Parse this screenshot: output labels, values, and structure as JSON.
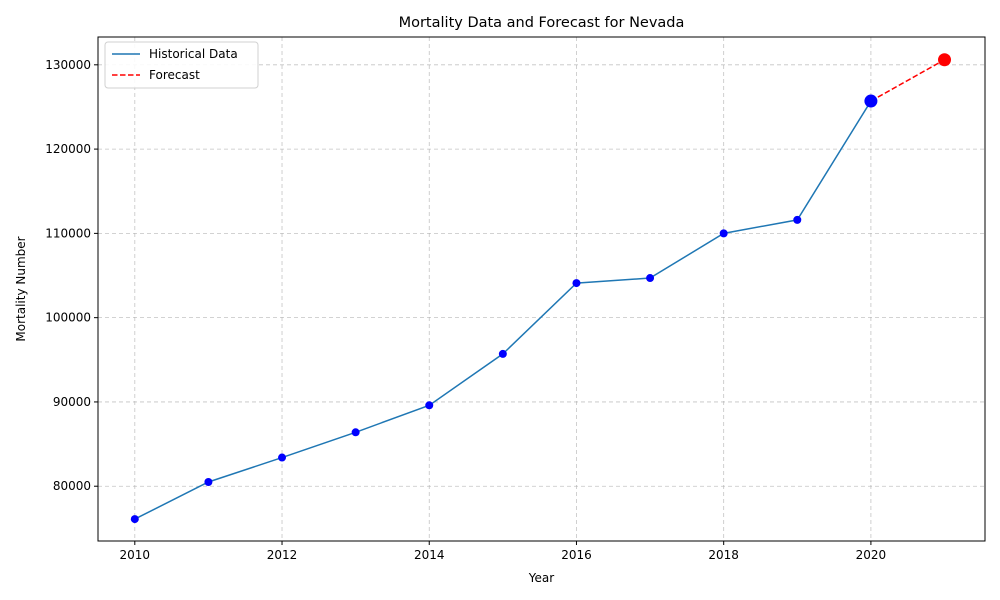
{
  "chart_data": {
    "type": "line",
    "title": "Mortality Data and Forecast for Nevada",
    "xlabel": "Year",
    "ylabel": "Mortality Number",
    "xlim": [
      2009.5,
      2021.55
    ],
    "ylim": [
      73500,
      133300
    ],
    "x_ticks": [
      2010,
      2012,
      2014,
      2016,
      2018,
      2020
    ],
    "y_ticks": [
      80000,
      90000,
      100000,
      110000,
      120000,
      130000
    ],
    "grid": true,
    "legend_position": "top-left",
    "series": [
      {
        "name": "Historical Data",
        "style": "solid",
        "color": "#1f77b4",
        "marker_color": "#0000ff",
        "x": [
          2010,
          2011,
          2012,
          2013,
          2014,
          2015,
          2016,
          2017,
          2018,
          2019,
          2020
        ],
        "values": [
          76100,
          80500,
          83400,
          86400,
          89600,
          95700,
          104100,
          104700,
          110000,
          111600,
          125700
        ]
      },
      {
        "name": "Forecast",
        "style": "dashed",
        "color": "#ff0000",
        "marker_color": "#ff0000",
        "x": [
          2020,
          2021
        ],
        "values": [
          125700,
          130600
        ]
      }
    ]
  }
}
